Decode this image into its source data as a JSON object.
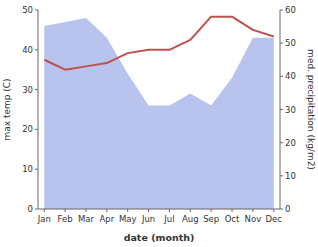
{
  "chart_data": {
    "type": "line",
    "categories": [
      "Jan",
      "Feb",
      "Mar",
      "Apr",
      "May",
      "Jun",
      "Jul",
      "Aug",
      "Sep",
      "Oct",
      "Nov",
      "Dec"
    ],
    "series": [
      {
        "type": "area",
        "color": "#b8c4ee",
        "values": [
          46,
          47,
          48,
          43,
          34,
          26,
          26,
          29,
          26,
          33,
          43,
          43
        ]
      },
      {
        "type": "line",
        "color": "#c0504d",
        "axis": "y2",
        "values": [
          45,
          42,
          43,
          44,
          47,
          48,
          48,
          51,
          58,
          58,
          54,
          52
        ]
      }
    ],
    "xlabel": "date (month)",
    "ylabel": "max temp (C)",
    "y2label": "med. precipitation (kg/m2)",
    "ylim": [
      0,
      50
    ],
    "yticks": [
      0,
      10,
      20,
      30,
      40,
      50
    ],
    "y2lim": [
      0,
      60
    ],
    "y2ticks": [
      0,
      10,
      20,
      30,
      40,
      50,
      60
    ]
  }
}
